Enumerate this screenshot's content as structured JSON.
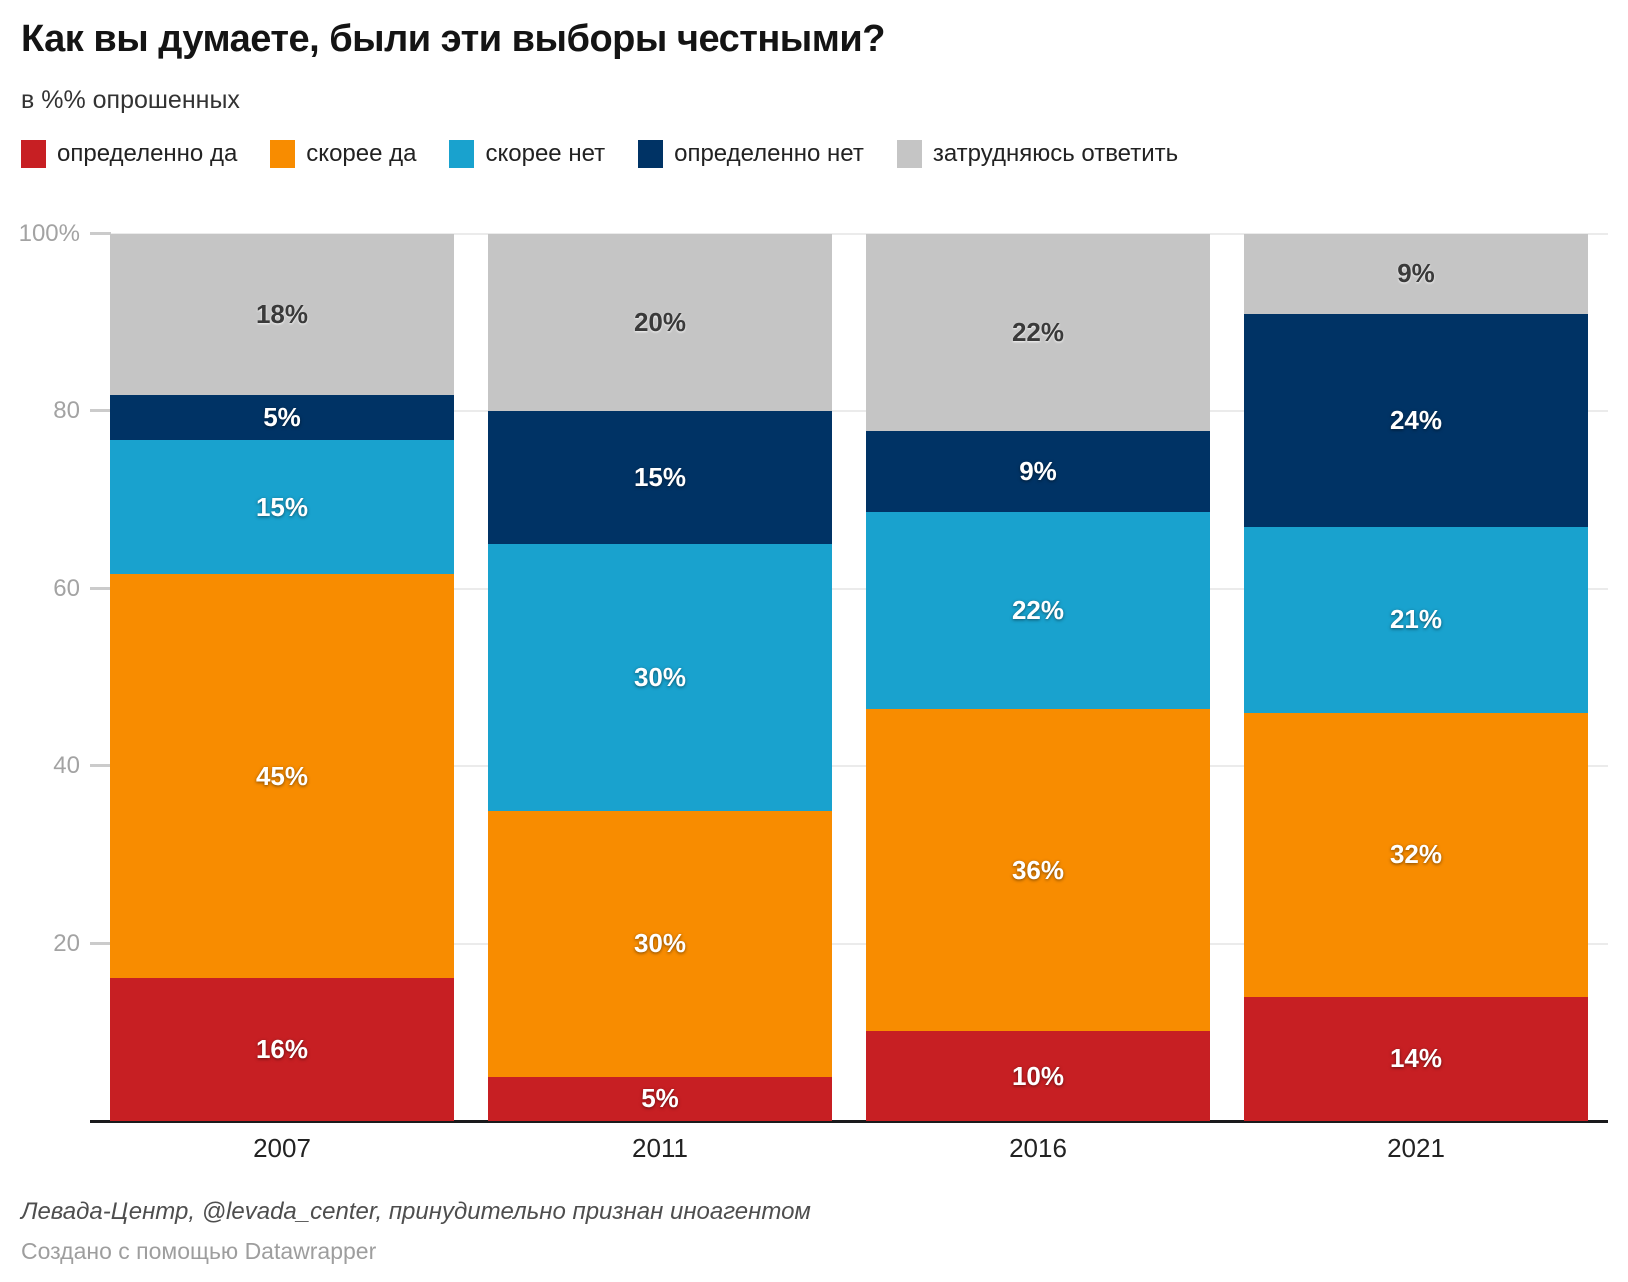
{
  "header": {
    "title": "Как вы думаете, были эти выборы честными?",
    "subtitle": "в %% опрошенных"
  },
  "legend": {
    "items": [
      {
        "label": "определенно да",
        "color": "#c71f23"
      },
      {
        "label": "скорее да",
        "color": "#f88c00"
      },
      {
        "label": "скорее нет",
        "color": "#19a2ce"
      },
      {
        "label": "определенно нет",
        "color": "#003365"
      },
      {
        "label": "затрудняюсь ответить",
        "color": "#c5c5c5"
      }
    ]
  },
  "chart_data": {
    "type": "bar",
    "stacking": "percent",
    "unit": "%",
    "categories": [
      "2007",
      "2011",
      "2016",
      "2021"
    ],
    "series": [
      {
        "name": "определенно да",
        "color": "#c71f23",
        "label_style": "light",
        "values": [
          16,
          5,
          10,
          14
        ]
      },
      {
        "name": "скорее да",
        "color": "#f88c00",
        "label_style": "light",
        "values": [
          45,
          30,
          36,
          32
        ]
      },
      {
        "name": "скорее нет",
        "color": "#19a2ce",
        "label_style": "light",
        "values": [
          15,
          30,
          22,
          21
        ]
      },
      {
        "name": "определенно нет",
        "color": "#003365",
        "label_style": "light",
        "values": [
          5,
          15,
          9,
          24
        ]
      },
      {
        "name": "затрудняюсь ответить",
        "color": "#c5c5c5",
        "label_style": "dark",
        "values": [
          18,
          20,
          22,
          9
        ]
      }
    ],
    "y_axis": {
      "ticks": [
        "100%",
        "80",
        "60",
        "40",
        "20"
      ],
      "tick_values": [
        100,
        80,
        60,
        40,
        20
      ],
      "range": [
        0,
        100
      ],
      "grid": true
    },
    "legend_position": "top"
  },
  "footer": {
    "source_note": "Левада-Центр, @levada_center, принудительно признан иноагентом",
    "attribution": "Создано с помощью Datawrapper"
  }
}
